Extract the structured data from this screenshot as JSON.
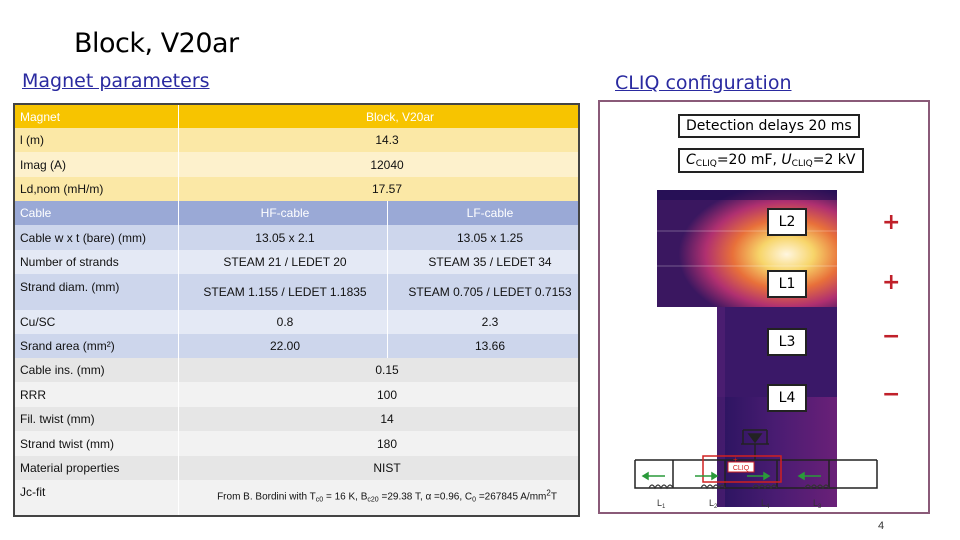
{
  "title": "Block, V20ar",
  "sections": {
    "left": "Magnet parameters",
    "right": "CLIQ configuration"
  },
  "table": {
    "magnet_label": "Magnet",
    "magnet_value": "Block, V20ar",
    "l_label": "l (m)",
    "l_value": "14.3",
    "imag_label": "Imag (A)",
    "imag_value": "12040",
    "ld_label": "Ld,nom (mH/m)",
    "ld_value": "17.57",
    "cable_label": "Cable",
    "hf": "HF-cable",
    "lf": "LF-cable",
    "cable_wxt_label": "Cable w x t (bare) (mm)",
    "cable_wxt_hf": "13.05 x 2.1",
    "cable_wxt_lf": "13.05 x 1.25",
    "strands_label": "Number of strands",
    "strands_hf": "STEAM 21 / LEDET 20",
    "strands_lf": "STEAM 35 / LEDET 34",
    "diam_label": "Strand diam. (mm)",
    "diam_hf": "STEAM 1.155 / LEDET 1.1835",
    "diam_lf": "STEAM 0.705 / LEDET 0.7153",
    "cusc_label": "Cu/SC",
    "cusc_hf": "0.8",
    "cusc_lf": "2.3",
    "area_label": "Srand area (mm²)",
    "area_hf": "22.00",
    "area_lf": "13.66",
    "ins_label": "Cable ins. (mm)",
    "ins_value": "0.15",
    "rrr_label": "RRR",
    "rrr_value": "100",
    "fil_label": "Fil. twist (mm)",
    "fil_value": "14",
    "strand_twist_label": "Strand twist (mm)",
    "strand_twist_value": "180",
    "material_label": "Material properties",
    "material_value": "NIST",
    "jc_label": "Jc-fit",
    "jc_value": {
      "a": "From B. Bordini with T",
      "a_sub": "c0",
      "b": " = 16 K, B",
      "b_sub": "c20",
      "c": " =29.38 T, α =0.96, C",
      "c_sub": "0",
      "d": " =267845 A/mm",
      "d_sup": "2",
      "e": "T"
    }
  },
  "cliq": {
    "detection": "Detection delays 20 ms",
    "cap_a": "C",
    "cap_sub": "CLIQ",
    "cap_b": "=20 mF, ",
    "volt_a": "U",
    "volt_sub": "CLIQ",
    "volt_b": "=2 kV",
    "labels": [
      "L2",
      "L1",
      "L3",
      "L4"
    ],
    "polarities": [
      "+",
      "+",
      "−",
      "−"
    ],
    "circuit_cliq": "CLIQ",
    "circuit_plus": "+",
    "circuit_inductors": [
      "L",
      "L",
      "L",
      "L"
    ],
    "circuit_inductor_subs": [
      "1",
      "2",
      "4",
      "3"
    ]
  },
  "page_number": "4"
}
